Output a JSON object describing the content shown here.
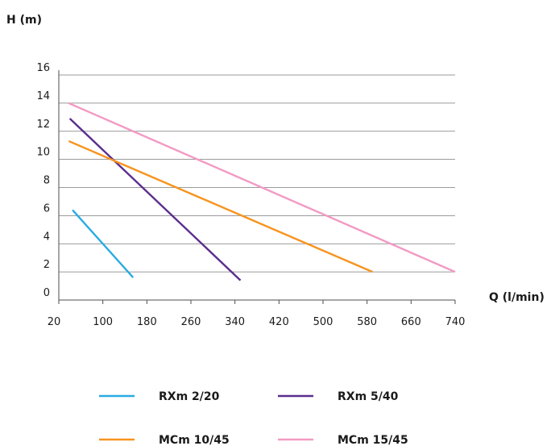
{
  "chart_data": {
    "type": "line",
    "ylabel": "H (m)",
    "xlabel": "Q (l/min)",
    "xlim": [
      20,
      740
    ],
    "ylim": [
      0,
      16
    ],
    "x_ticks": [
      "20",
      "100",
      "180",
      "260",
      "340",
      "420",
      "500",
      "580",
      "660",
      "740"
    ],
    "y_ticks": [
      "0",
      "2",
      "4",
      "6",
      "8",
      "10",
      "12",
      "14",
      "16"
    ],
    "grid": "horizontal",
    "legend_position": "bottom",
    "series": [
      {
        "name": "RXm 2/20",
        "color": "#29abe2",
        "x": [
          45,
          155
        ],
        "y": [
          6.4,
          1.6
        ]
      },
      {
        "name": "RXm 5/40",
        "color": "#5b2d8e",
        "x": [
          40,
          350
        ],
        "y": [
          12.9,
          1.4
        ]
      },
      {
        "name": "MCm 10/45",
        "color": "#f7931e",
        "x": [
          38,
          590
        ],
        "y": [
          11.3,
          2.0
        ]
      },
      {
        "name": "MCm 15/45",
        "color": "#f29ac4",
        "x": [
          38,
          740
        ],
        "y": [
          14.0,
          2.0
        ]
      }
    ]
  }
}
